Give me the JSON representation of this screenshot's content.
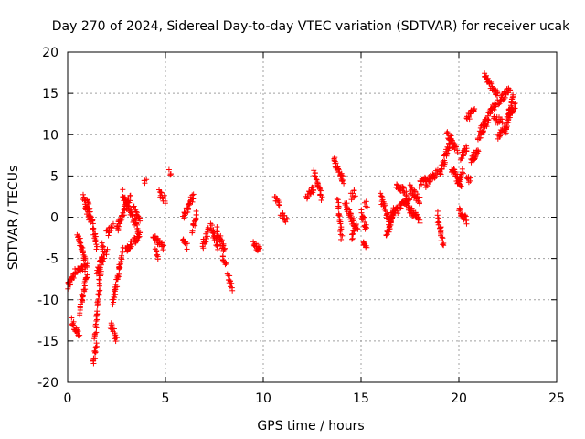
{
  "chart_data": {
    "type": "scatter",
    "title": "Day 270 of 2024, Sidereal Day-to-day VTEC variation (SDTVAR) for receiver ucak",
    "xlabel": "GPS time / hours",
    "ylabel": "SDTVAR / TECUs",
    "xlim": [
      0,
      25
    ],
    "ylim": [
      -20,
      20
    ],
    "xticks": [
      0,
      5,
      10,
      15,
      20,
      25
    ],
    "yticks": [
      -20,
      -15,
      -10,
      -5,
      0,
      5,
      10,
      15,
      20
    ],
    "grid": true,
    "marker": "+",
    "color": "#ff0000",
    "series": [
      {
        "name": "SDTVAR",
        "segments": [
          {
            "x0": 0.0,
            "x1": 0.4,
            "y0": -8.5,
            "y1": -6.5
          },
          {
            "x0": 0.2,
            "x1": 0.6,
            "y0": -12.5,
            "y1": -14.5
          },
          {
            "x0": 0.5,
            "x1": 1.0,
            "y0": -6.5,
            "y1": -6.0
          },
          {
            "x0": 0.6,
            "x1": 1.0,
            "y0": -11.5,
            "y1": -7.0
          },
          {
            "x0": 0.5,
            "x1": 0.9,
            "y0": -2.0,
            "y1": -5.5
          },
          {
            "x0": 0.8,
            "x1": 1.1,
            "y0": 2.5,
            "y1": 0.0
          },
          {
            "x0": 1.0,
            "x1": 1.5,
            "y0": 2.0,
            "y1": -3.5
          },
          {
            "x0": 1.3,
            "x1": 1.5,
            "y0": -17.5,
            "y1": -15.5
          },
          {
            "x0": 1.4,
            "x1": 1.8,
            "y0": -14.5,
            "y1": -3.0
          },
          {
            "x0": 1.5,
            "x1": 2.0,
            "y0": -6.5,
            "y1": -4.0
          },
          {
            "x0": 2.0,
            "x1": 2.3,
            "y0": -2.0,
            "y1": -1.0
          },
          {
            "x0": 2.2,
            "x1": 2.5,
            "y0": -13.0,
            "y1": -15.0
          },
          {
            "x0": 2.3,
            "x1": 2.8,
            "y0": -10.5,
            "y1": -4.0
          },
          {
            "x0": 2.5,
            "x1": 3.2,
            "y0": -1.5,
            "y1": 2.5
          },
          {
            "x0": 2.8,
            "x1": 3.6,
            "y0": 3.0,
            "y1": -1.5
          },
          {
            "x0": 3.0,
            "x1": 3.7,
            "y0": -4.0,
            "y1": -2.0
          },
          {
            "x0": 3.4,
            "x1": 3.7,
            "y0": 1.0,
            "y1": -0.5
          },
          {
            "x0": 3.9,
            "x1": 4.0,
            "y0": 4.5,
            "y1": 4.6
          },
          {
            "x0": 4.4,
            "x1": 4.9,
            "y0": -2.5,
            "y1": -3.5
          },
          {
            "x0": 4.5,
            "x1": 4.6,
            "y0": -4.0,
            "y1": -5.0
          },
          {
            "x0": 4.7,
            "x1": 5.0,
            "y0": 3.0,
            "y1": 2.0
          },
          {
            "x0": 5.2,
            "x1": 5.3,
            "y0": 5.5,
            "y1": 5.5
          },
          {
            "x0": 5.9,
            "x1": 6.4,
            "y0": 0.0,
            "y1": 2.5
          },
          {
            "x0": 5.9,
            "x1": 6.1,
            "y0": -2.5,
            "y1": -3.5
          },
          {
            "x0": 6.4,
            "x1": 6.6,
            "y0": -1.5,
            "y1": 0.5
          },
          {
            "x0": 6.9,
            "x1": 7.2,
            "y0": -3.5,
            "y1": -1.5
          },
          {
            "x0": 7.3,
            "x1": 7.7,
            "y0": -1.0,
            "y1": -3.5
          },
          {
            "x0": 7.6,
            "x1": 8.0,
            "y0": -1.5,
            "y1": -4.0
          },
          {
            "x0": 7.9,
            "x1": 8.1,
            "y0": -5.0,
            "y1": -5.5
          },
          {
            "x0": 8.2,
            "x1": 8.4,
            "y0": -7.0,
            "y1": -8.5
          },
          {
            "x0": 9.5,
            "x1": 9.8,
            "y0": -3.0,
            "y1": -4.0
          },
          {
            "x0": 10.6,
            "x1": 10.8,
            "y0": 2.5,
            "y1": 1.5
          },
          {
            "x0": 10.9,
            "x1": 11.2,
            "y0": 0.5,
            "y1": -0.5
          },
          {
            "x0": 12.2,
            "x1": 12.6,
            "y0": 2.5,
            "y1": 3.5
          },
          {
            "x0": 12.6,
            "x1": 13.0,
            "y0": 5.5,
            "y1": 2.5
          },
          {
            "x0": 13.6,
            "x1": 14.1,
            "y0": 7.0,
            "y1": 4.5
          },
          {
            "x0": 13.8,
            "x1": 14.0,
            "y0": 2.0,
            "y1": -2.5
          },
          {
            "x0": 14.2,
            "x1": 14.8,
            "y0": 1.5,
            "y1": -1.5
          },
          {
            "x0": 14.5,
            "x1": 14.7,
            "y0": -2.5,
            "y1": -1.0
          },
          {
            "x0": 14.5,
            "x1": 14.7,
            "y0": 2.5,
            "y1": 3.0
          },
          {
            "x0": 15.0,
            "x1": 15.3,
            "y0": 0.5,
            "y1": -1.5
          },
          {
            "x0": 15.1,
            "x1": 15.3,
            "y0": -3.0,
            "y1": -3.5
          },
          {
            "x0": 15.2,
            "x1": 15.3,
            "y0": 1.5,
            "y1": 1.5
          },
          {
            "x0": 16.0,
            "x1": 16.5,
            "y0": 2.5,
            "y1": -1.0
          },
          {
            "x0": 16.3,
            "x1": 16.7,
            "y0": -2.5,
            "y1": 1.0
          },
          {
            "x0": 16.5,
            "x1": 17.5,
            "y0": 0.0,
            "y1": 2.5
          },
          {
            "x0": 16.8,
            "x1": 17.3,
            "y0": 4.0,
            "y1": 3.0
          },
          {
            "x0": 17.3,
            "x1": 18.0,
            "y0": 1.5,
            "y1": -0.5
          },
          {
            "x0": 17.5,
            "x1": 18.0,
            "y0": 3.5,
            "y1": 2.0
          },
          {
            "x0": 18.0,
            "x1": 18.3,
            "y0": 4.0,
            "y1": 4.5
          },
          {
            "x0": 18.3,
            "x1": 18.9,
            "y0": 4.0,
            "y1": 5.5
          },
          {
            "x0": 18.9,
            "x1": 19.2,
            "y0": 0.5,
            "y1": -3.5
          },
          {
            "x0": 19.0,
            "x1": 19.6,
            "y0": 5.0,
            "y1": 9.5
          },
          {
            "x0": 19.4,
            "x1": 19.9,
            "y0": 10.0,
            "y1": 8.0
          },
          {
            "x0": 19.6,
            "x1": 20.1,
            "y0": 6.0,
            "y1": 4.0
          },
          {
            "x0": 20.0,
            "x1": 20.4,
            "y0": 1.0,
            "y1": -0.5
          },
          {
            "x0": 19.9,
            "x1": 20.2,
            "y0": 4.0,
            "y1": 5.5
          },
          {
            "x0": 20.1,
            "x1": 20.4,
            "y0": 7.0,
            "y1": 8.5
          },
          {
            "x0": 20.4,
            "x1": 20.6,
            "y0": 4.5,
            "y1": 4.6
          },
          {
            "x0": 20.4,
            "x1": 20.8,
            "y0": 12.0,
            "y1": 13.0
          },
          {
            "x0": 20.6,
            "x1": 21.0,
            "y0": 7.0,
            "y1": 8.0
          },
          {
            "x0": 21.0,
            "x1": 21.3,
            "y0": 9.5,
            "y1": 11.5
          },
          {
            "x0": 21.2,
            "x1": 21.9,
            "y0": 10.5,
            "y1": 14.0
          },
          {
            "x0": 21.3,
            "x1": 22.0,
            "y0": 17.0,
            "y1": 15.0
          },
          {
            "x0": 21.8,
            "x1": 22.2,
            "y0": 12.0,
            "y1": 11.5
          },
          {
            "x0": 22.0,
            "x1": 22.4,
            "y0": 9.5,
            "y1": 11.0
          },
          {
            "x0": 22.0,
            "x1": 22.6,
            "y0": 14.0,
            "y1": 15.5
          },
          {
            "x0": 22.4,
            "x1": 22.8,
            "y0": 10.5,
            "y1": 14.5
          },
          {
            "x0": 22.5,
            "x1": 22.9,
            "y0": 12.5,
            "y1": 13.5
          }
        ]
      }
    ]
  }
}
